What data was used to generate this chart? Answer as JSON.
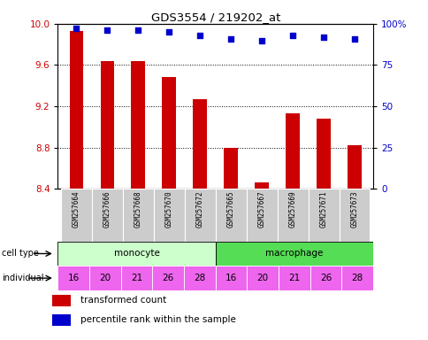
{
  "title": "GDS3554 / 219202_at",
  "samples": [
    "GSM257664",
    "GSM257666",
    "GSM257668",
    "GSM257670",
    "GSM257672",
    "GSM257665",
    "GSM257667",
    "GSM257669",
    "GSM257671",
    "GSM257673"
  ],
  "bar_values": [
    9.93,
    9.64,
    9.64,
    9.48,
    9.27,
    8.8,
    8.46,
    9.13,
    9.08,
    8.82
  ],
  "dot_values": [
    97,
    96,
    96,
    95,
    93,
    91,
    90,
    93,
    92,
    91
  ],
  "individuals": [
    "16",
    "20",
    "21",
    "26",
    "28",
    "16",
    "20",
    "21",
    "26",
    "28"
  ],
  "bar_color": "#cc0000",
  "dot_color": "#0000cc",
  "monocyte_color": "#ccffcc",
  "macrophage_color": "#55dd55",
  "individual_color": "#ee66ee",
  "ylim_left": [
    8.4,
    10.0
  ],
  "ylim_right": [
    0,
    100
  ],
  "yticks_left": [
    8.4,
    8.8,
    9.2,
    9.6,
    10.0
  ],
  "yticks_right": [
    0,
    25,
    50,
    75,
    100
  ],
  "ytick_labels_right": [
    "0",
    "25",
    "50",
    "75",
    "100%"
  ],
  "ylabel_left_color": "#cc0000",
  "ylabel_right_color": "#0000cc",
  "legend_bar_label": "transformed count",
  "legend_dot_label": "percentile rank within the sample",
  "sample_bg_color": "#cccccc",
  "n_monocyte": 5,
  "n_macrophage": 5
}
